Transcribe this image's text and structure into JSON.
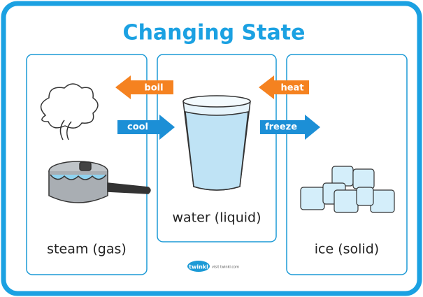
{
  "title": "Changing State",
  "panels": [
    {
      "label": "steam (gas)"
    },
    {
      "label": "water (liquid)"
    },
    {
      "label": "ice (solid)"
    }
  ],
  "arrows": [
    {
      "label": "boil"
    },
    {
      "label": "heat"
    },
    {
      "label": "cool"
    },
    {
      "label": "freeze"
    }
  ],
  "footer": {
    "logo": "twinkl",
    "link": "visit twinkl.com"
  }
}
